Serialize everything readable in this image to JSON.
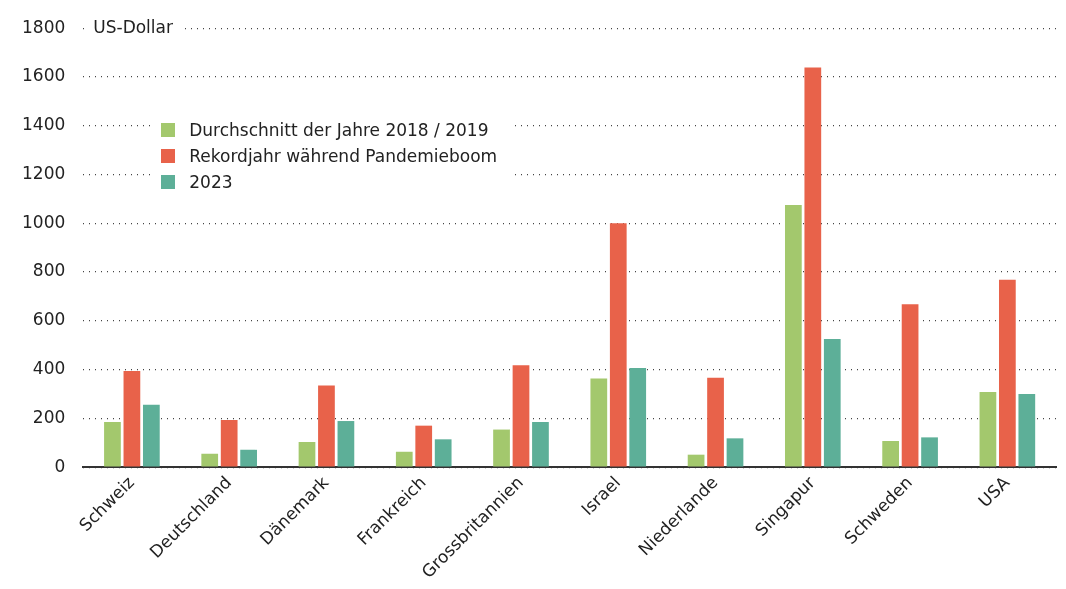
{
  "chart_data": {
    "type": "bar",
    "ylabel": "US-Dollar",
    "categories": [
      "Schweiz",
      "Deutschland",
      "Dänemark",
      "Frankreich",
      "Grossbritannien",
      "Israel",
      "Niederlande",
      "Singapur",
      "Schweden",
      "USA"
    ],
    "series": [
      {
        "name": "Durchschnitt der Jahre 2018 / 2019",
        "color": "#a3c86d",
        "values": [
          185,
          55,
          103,
          63,
          154,
          363,
          51,
          1075,
          107,
          308
        ]
      },
      {
        "name": "Rekordjahr während Pandemieboom",
        "color": "#e8624a",
        "values": [
          394,
          193,
          335,
          170,
          418,
          1000,
          367,
          1639,
          668,
          768
        ]
      },
      {
        "name": "2023",
        "color": "#5daf98",
        "values": [
          256,
          71,
          189,
          114,
          185,
          406,
          118,
          525,
          122,
          300
        ]
      }
    ],
    "ylim": [
      0,
      1800
    ],
    "yticks": [
      0,
      200,
      400,
      600,
      800,
      1000,
      1200,
      1400,
      1600,
      1800
    ],
    "grid": "y",
    "legend": "top left"
  }
}
